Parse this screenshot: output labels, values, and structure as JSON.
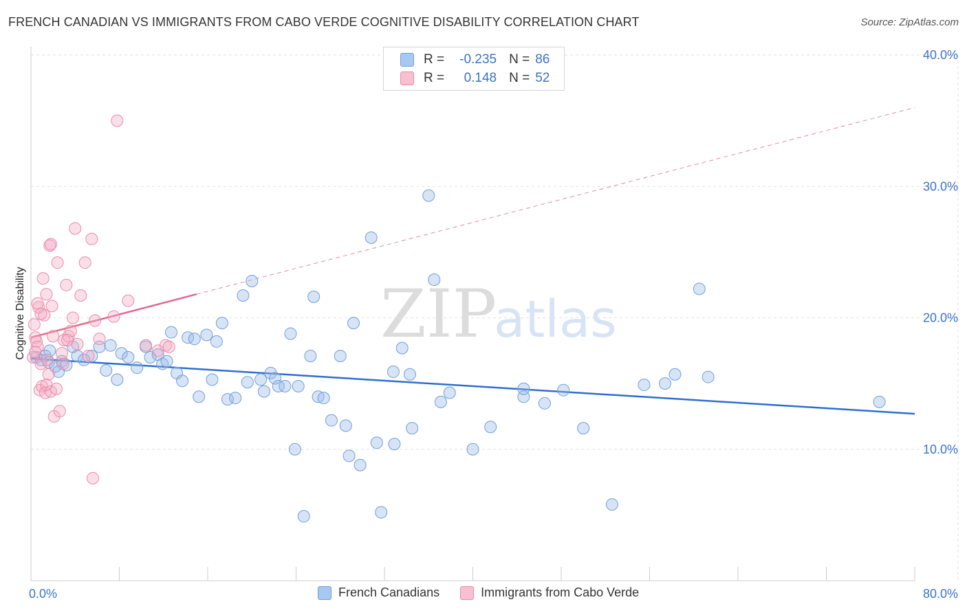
{
  "title": "FRENCH CANADIAN VS IMMIGRANTS FROM CABO VERDE COGNITIVE DISABILITY CORRELATION CHART",
  "source": "Source: ZipAtlas.com",
  "watermark": {
    "zip": "ZIP",
    "atlas": "atlas"
  },
  "legend_stats": [
    {
      "r_label": "R =",
      "r_value": "-0.235",
      "n_label": "N =",
      "n_value": "86",
      "color": "#a9c8f0",
      "border": "#6f9fd8"
    },
    {
      "r_label": "R =",
      "r_value": "0.148",
      "n_label": "N =",
      "n_value": "52",
      "color": "#f8bfd0",
      "border": "#e98aa8"
    }
  ],
  "colors": {
    "blue_fill": "rgba(150,185,232,0.38)",
    "blue_stroke": "#6f9fd8",
    "blue_line": "#2a6fcf",
    "pink_fill": "rgba(245,170,195,0.38)",
    "pink_stroke": "#e98aa8",
    "pink_line": "#e0698f",
    "grid": "#e2e2e2",
    "tick_label": "#3b73c4"
  },
  "chart_data": {
    "type": "scatter",
    "title": "FRENCH CANADIAN VS IMMIGRANTS FROM CABO VERDE COGNITIVE DISABILITY CORRELATION CHART",
    "xlabel": "",
    "ylabel": "Cognitive Disability",
    "xlim": [
      0,
      80
    ],
    "ylim": [
      0,
      40
    ],
    "x_tick_labels": [
      "0.0%",
      "80.0%"
    ],
    "y_ticks": [
      10,
      20,
      30,
      40
    ],
    "y_tick_labels": [
      "10.0%",
      "20.0%",
      "30.0%",
      "40.0%"
    ],
    "grid": true,
    "legend_position": "bottom",
    "series": [
      {
        "name": "French Canadians",
        "points": [
          [
            0.5,
            17.0
          ],
          [
            0.9,
            16.8
          ],
          [
            1.3,
            17.1
          ],
          [
            1.6,
            16.6
          ],
          [
            2.2,
            16.3
          ],
          [
            2.8,
            16.7
          ],
          [
            3.2,
            16.4
          ],
          [
            3.8,
            17.8
          ],
          [
            4.2,
            17.1
          ],
          [
            5.5,
            17.1
          ],
          [
            4.8,
            16.8
          ],
          [
            6.2,
            17.8
          ],
          [
            6.8,
            16.0
          ],
          [
            7.2,
            17.9
          ],
          [
            8.2,
            17.3
          ],
          [
            7.8,
            15.3
          ],
          [
            8.8,
            17.0
          ],
          [
            9.6,
            16.2
          ],
          [
            10.4,
            17.8
          ],
          [
            10.8,
            17.0
          ],
          [
            11.5,
            17.2
          ],
          [
            11.9,
            16.5
          ],
          [
            12.3,
            16.7
          ],
          [
            12.7,
            18.9
          ],
          [
            13.2,
            15.8
          ],
          [
            13.7,
            15.2
          ],
          [
            14.2,
            18.5
          ],
          [
            14.8,
            18.4
          ],
          [
            15.2,
            14.0
          ],
          [
            15.9,
            18.7
          ],
          [
            16.4,
            15.3
          ],
          [
            16.8,
            18.2
          ],
          [
            17.3,
            19.6
          ],
          [
            17.8,
            13.8
          ],
          [
            18.5,
            13.9
          ],
          [
            19.2,
            21.7
          ],
          [
            19.6,
            15.1
          ],
          [
            20.0,
            22.8
          ],
          [
            20.8,
            15.3
          ],
          [
            21.1,
            14.4
          ],
          [
            21.7,
            15.8
          ],
          [
            22.1,
            15.4
          ],
          [
            22.4,
            14.8
          ],
          [
            23.0,
            14.8
          ],
          [
            23.5,
            18.8
          ],
          [
            23.9,
            10.0
          ],
          [
            24.2,
            14.8
          ],
          [
            24.7,
            4.9
          ],
          [
            25.3,
            17.1
          ],
          [
            25.6,
            21.6
          ],
          [
            26.0,
            14.0
          ],
          [
            26.5,
            13.9
          ],
          [
            27.2,
            12.2
          ],
          [
            28.0,
            17.1
          ],
          [
            28.5,
            11.8
          ],
          [
            28.8,
            9.5
          ],
          [
            29.2,
            19.6
          ],
          [
            29.8,
            8.8
          ],
          [
            30.8,
            26.1
          ],
          [
            31.3,
            10.5
          ],
          [
            31.7,
            5.2
          ],
          [
            32.8,
            15.9
          ],
          [
            32.9,
            10.4
          ],
          [
            33.6,
            17.7
          ],
          [
            34.3,
            15.7
          ],
          [
            34.5,
            11.6
          ],
          [
            36.0,
            29.3
          ],
          [
            36.5,
            22.9
          ],
          [
            37.1,
            13.6
          ],
          [
            37.9,
            14.3
          ],
          [
            40.0,
            10.0
          ],
          [
            41.6,
            11.7
          ],
          [
            44.6,
            14.0
          ],
          [
            44.6,
            14.6
          ],
          [
            46.5,
            13.5
          ],
          [
            48.2,
            14.5
          ],
          [
            50.0,
            11.6
          ],
          [
            52.6,
            5.8
          ],
          [
            55.5,
            14.9
          ],
          [
            57.4,
            15.0
          ],
          [
            58.3,
            15.7
          ],
          [
            60.5,
            22.2
          ],
          [
            61.3,
            15.5
          ],
          [
            76.8,
            13.6
          ],
          [
            1.7,
            17.5
          ],
          [
            2.5,
            15.9
          ]
        ],
        "trend": {
          "x": [
            0,
            80
          ],
          "y": [
            16.9,
            12.7
          ]
        }
      },
      {
        "name": "Immigrants from Cabo Verde",
        "points": [
          [
            0.3,
            19.5
          ],
          [
            0.4,
            18.5
          ],
          [
            0.5,
            18.2
          ],
          [
            0.6,
            17.8
          ],
          [
            0.7,
            20.8
          ],
          [
            0.8,
            14.5
          ],
          [
            0.9,
            16.5
          ],
          [
            1.0,
            14.8
          ],
          [
            1.1,
            23.0
          ],
          [
            1.2,
            20.2
          ],
          [
            1.3,
            14.3
          ],
          [
            1.4,
            21.8
          ],
          [
            1.5,
            16.8
          ],
          [
            1.6,
            15.7
          ],
          [
            1.7,
            25.5
          ],
          [
            1.8,
            14.4
          ],
          [
            1.9,
            20.9
          ],
          [
            2.0,
            18.6
          ],
          [
            2.1,
            12.5
          ],
          [
            2.3,
            14.6
          ],
          [
            2.4,
            24.2
          ],
          [
            2.6,
            12.9
          ],
          [
            2.8,
            17.3
          ],
          [
            3.0,
            18.3
          ],
          [
            3.2,
            22.5
          ],
          [
            3.4,
            18.6
          ],
          [
            3.6,
            19.0
          ],
          [
            3.8,
            20.0
          ],
          [
            4.0,
            26.8
          ],
          [
            4.2,
            18.0
          ],
          [
            4.5,
            21.7
          ],
          [
            4.9,
            24.2
          ],
          [
            5.2,
            17.1
          ],
          [
            5.5,
            26.0
          ],
          [
            5.8,
            19.8
          ],
          [
            5.6,
            7.8
          ],
          [
            6.2,
            18.4
          ],
          [
            7.5,
            20.1
          ],
          [
            7.8,
            35.0
          ],
          [
            8.8,
            21.3
          ],
          [
            10.4,
            17.9
          ],
          [
            11.5,
            17.5
          ],
          [
            12.2,
            17.9
          ],
          [
            12.5,
            17.8
          ],
          [
            0.2,
            17.0
          ],
          [
            0.4,
            17.4
          ],
          [
            0.6,
            21.1
          ],
          [
            1.8,
            25.6
          ],
          [
            2.9,
            16.5
          ],
          [
            3.3,
            18.3
          ],
          [
            0.9,
            20.3
          ],
          [
            1.4,
            14.9
          ]
        ],
        "trend": {
          "x": [
            0,
            15
          ],
          "y": [
            18.5,
            21.8
          ]
        },
        "trend_extension": {
          "x": [
            15,
            80
          ],
          "y": [
            21.8,
            36.0
          ]
        }
      }
    ]
  }
}
